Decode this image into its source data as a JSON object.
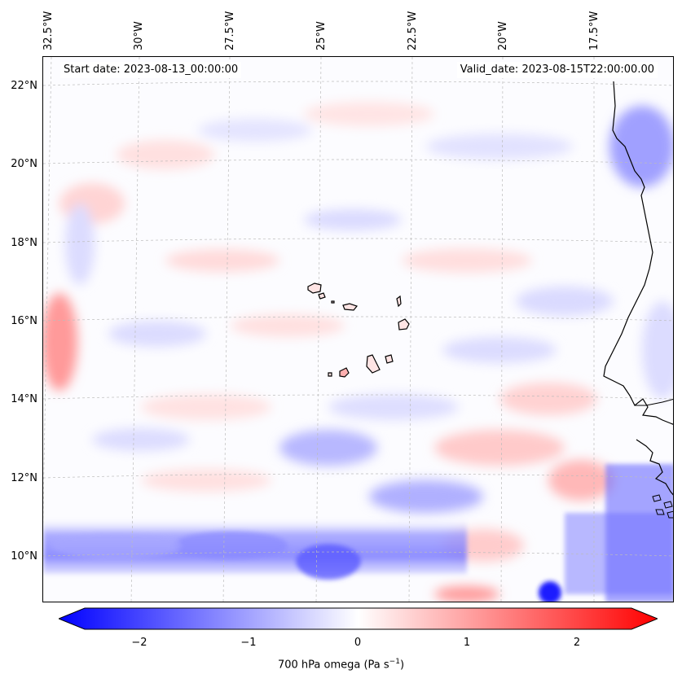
{
  "header": {
    "start_date": "Start date: 2023-08-13_00:00:00",
    "valid_date": "Valid_date: 2023-08-15T22:00:00.00"
  },
  "axes": {
    "lon_labels": [
      "32.5°W",
      "30°W",
      "27.5°W",
      "25°W",
      "22.5°W",
      "20°W",
      "17.5°W"
    ],
    "lat_labels": [
      "22°N",
      "20°N",
      "18°N",
      "16°N",
      "14°N",
      "12°N",
      "10°N"
    ]
  },
  "colorbar": {
    "ticks": [
      "−2",
      "−1",
      "0",
      "1",
      "2"
    ],
    "label_prefix": "700 hPa omega (Pa s",
    "label_exp": "−1",
    "label_suffix": ")",
    "min_color": "#0000ff",
    "mid_color": "#ffffff",
    "max_color": "#ff0000"
  },
  "map": {
    "variable": "700 hPa omega",
    "projection_grid": "lat-lon gridlines dashed",
    "features": [
      "cabo-verde-islands",
      "west-africa-coastline"
    ]
  }
}
